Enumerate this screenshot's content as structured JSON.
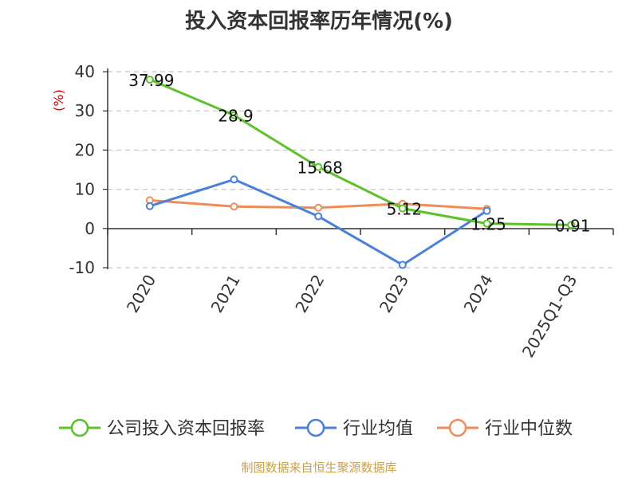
{
  "title": "投入资本回报率历年情况(%)",
  "source": "制图数据来自恒生聚源数据库",
  "chart_data": {
    "type": "line",
    "title": "投入资本回报率历年情况(%)",
    "ylabel": "(%)",
    "xlabel": "",
    "categories": [
      "2020",
      "2021",
      "2022",
      "2023",
      "2024",
      "2025Q1-Q3"
    ],
    "ylim": [
      -10,
      40
    ],
    "yticks": [
      "40",
      "30",
      "20",
      "10",
      "0",
      "-10"
    ],
    "grid": true,
    "legend_position": "bottom",
    "series": [
      {
        "name": "公司投入资本回报率",
        "color": "#5cc12a",
        "values": [
          37.99,
          28.9,
          15.68,
          5.12,
          1.25,
          0.91
        ],
        "labels": [
          "37.99",
          "28.9",
          "15.68",
          "5.12",
          "1.25",
          "0.91"
        ]
      },
      {
        "name": "行业均值",
        "color": "#4b7fd9",
        "values": [
          5.7,
          12.5,
          3.1,
          -9.3,
          4.5,
          null
        ]
      },
      {
        "name": "行业中位数",
        "color": "#f08c5a",
        "values": [
          7.2,
          5.6,
          5.3,
          6.3,
          5.0,
          null
        ]
      }
    ]
  }
}
